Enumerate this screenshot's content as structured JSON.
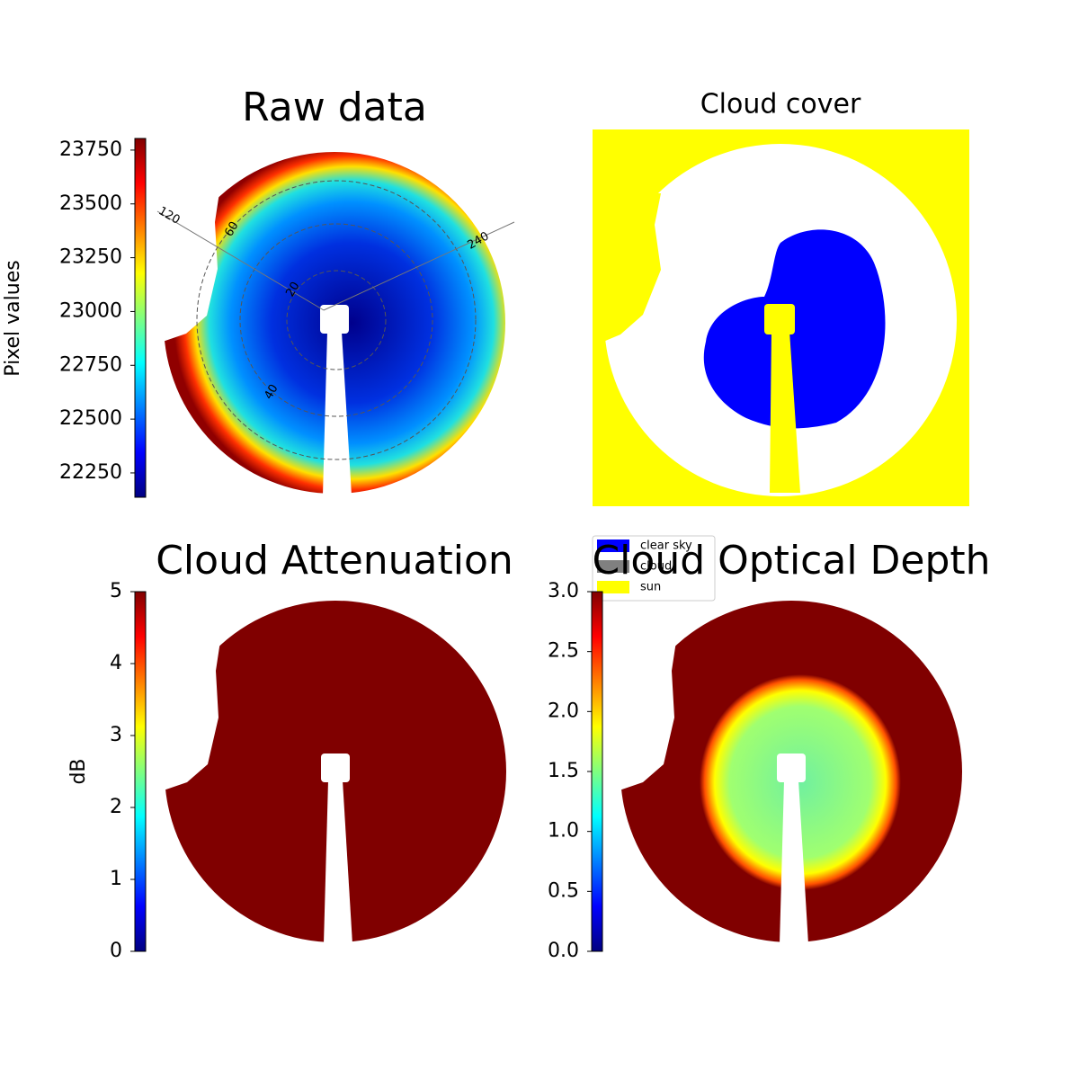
{
  "chart_data": [
    {
      "type": "image",
      "title": "Raw data",
      "colormap": "jet",
      "clim": [
        22137,
        23804
      ],
      "cticks": [
        22250,
        22500,
        22750,
        23000,
        23250,
        23500,
        23750
      ],
      "clabel": "Pixel values",
      "annotations": [
        "120",
        "60",
        "240",
        "20",
        "40"
      ]
    },
    {
      "type": "classes",
      "title": "Cloud cover",
      "classes": [
        {
          "name": "clear sky",
          "color": "#0000ff"
        },
        {
          "name": "cloud",
          "color": "#808080"
        },
        {
          "name": "sun",
          "color": "#ffff00"
        }
      ]
    },
    {
      "type": "image",
      "title": "Cloud Attenuation",
      "colormap": "jet",
      "clim": [
        0,
        5
      ],
      "cticks": [
        0,
        1,
        2,
        3,
        4,
        5
      ],
      "clabel": "dB"
    },
    {
      "type": "image",
      "title": "Cloud Optical Depth",
      "colormap": "jet",
      "clim": [
        0,
        3
      ],
      "cticks": [
        {
          "value": 0,
          "label": "0.0"
        },
        {
          "value": 0.5,
          "label": "0.5"
        },
        {
          "value": 1,
          "label": "1.0"
        },
        {
          "value": 1.5,
          "label": "1.5"
        },
        {
          "value": 2,
          "label": "2.0"
        },
        {
          "value": 2.5,
          "label": "2.5"
        },
        {
          "value": 3,
          "label": "3.0"
        }
      ]
    }
  ]
}
